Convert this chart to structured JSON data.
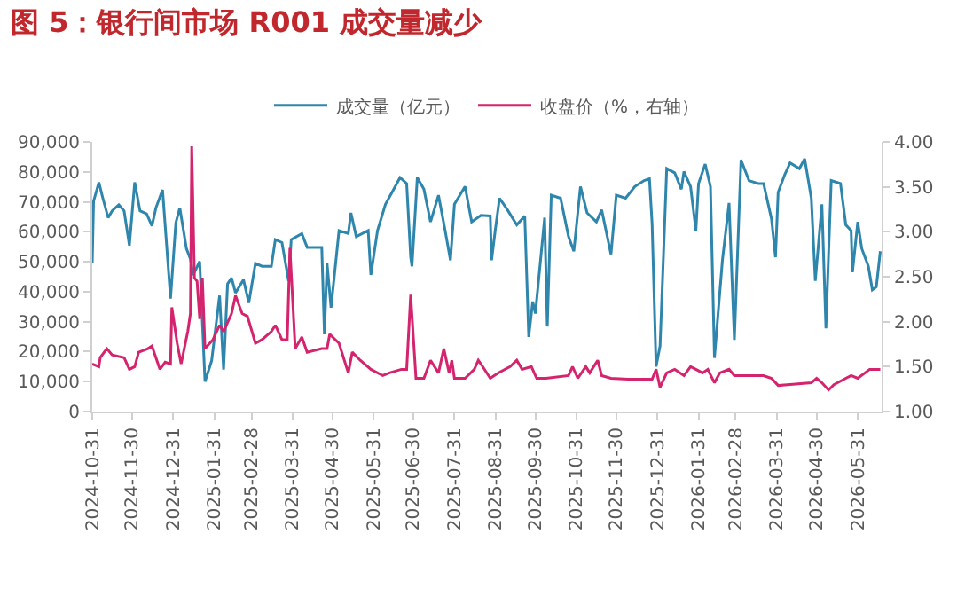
{
  "chart_data": {
    "type": "line",
    "title": "图 5：银行间市场 R001 成交量减少",
    "xlim": [
      "2024-10-31",
      "2026-06-18"
    ],
    "xticks": [
      "2024-10-31",
      "2024-11-30",
      "2024-12-31",
      "2025-01-31",
      "2025-02-28",
      "2025-03-31",
      "2025-04-30",
      "2025-05-31",
      "2025-06-30",
      "2025-07-31",
      "2025-08-31",
      "2025-09-30",
      "2025-10-31",
      "2025-11-30",
      "2025-12-31",
      "2026-01-31",
      "2026-02-28",
      "2026-03-31",
      "2026-04-30",
      "2026-05-31"
    ],
    "ylim": [
      0,
      90000
    ],
    "yticks": [
      {
        "value": 0,
        "label": "0"
      },
      {
        "value": 10000,
        "label": "10,000"
      },
      {
        "value": 20000,
        "label": "20,000"
      },
      {
        "value": 30000,
        "label": "30,000"
      },
      {
        "value": 40000,
        "label": "40,000"
      },
      {
        "value": 50000,
        "label": "50,000"
      },
      {
        "value": 60000,
        "label": "60,000"
      },
      {
        "value": 70000,
        "label": "70,000"
      },
      {
        "value": 80000,
        "label": "80,000"
      },
      {
        "value": 90000,
        "label": "90,000"
      }
    ],
    "y2lim": [
      1,
      4
    ],
    "y2ticks": [
      {
        "value": 1,
        "label": "1.00"
      },
      {
        "value": 1.5,
        "label": "1.50"
      },
      {
        "value": 2,
        "label": "2.00"
      },
      {
        "value": 2.5,
        "label": "2.50"
      },
      {
        "value": 3,
        "label": "3.00"
      },
      {
        "value": 3.5,
        "label": "3.50"
      },
      {
        "value": 4,
        "label": "4.00"
      }
    ],
    "grid": false,
    "legend": "top",
    "marker": "none",
    "line_style": "solid",
    "series": [
      {
        "name": "成交量（亿元）",
        "color": "#2f86ad",
        "x": [
          "2024-10-31",
          "2024-11-01",
          "2024-11-05",
          "2024-11-08",
          "2024-11-12",
          "2024-11-15",
          "2024-11-20",
          "2024-11-24",
          "2024-11-28",
          "2024-12-02",
          "2024-12-06",
          "2024-12-11",
          "2024-12-15",
          "2024-12-18",
          "2024-12-23",
          "2024-12-29",
          "2025-01-02",
          "2025-01-05",
          "2025-01-10",
          "2025-01-13",
          "2025-01-15",
          "2025-01-20",
          "2025-01-24",
          "2025-01-29",
          "2025-02-04",
          "2025-02-07",
          "2025-02-10",
          "2025-02-13",
          "2025-02-16",
          "2025-02-22",
          "2025-02-26",
          "2025-03-03",
          "2025-03-08",
          "2025-03-15",
          "2025-03-18",
          "2025-03-23",
          "2025-03-28",
          "2025-03-30",
          "2025-04-07",
          "2025-04-11",
          "2025-04-22",
          "2025-04-24",
          "2025-04-26",
          "2025-04-29",
          "2025-05-05",
          "2025-05-12",
          "2025-05-14",
          "2025-05-18",
          "2025-05-27",
          "2025-05-29",
          "2025-06-03",
          "2025-06-09",
          "2025-06-14",
          "2025-06-20",
          "2025-06-25",
          "2025-06-28",
          "2025-06-29",
          "2025-07-03",
          "2025-07-08",
          "2025-07-13",
          "2025-07-19",
          "2025-07-24",
          "2025-07-28",
          "2025-07-31",
          "2025-08-08",
          "2025-08-13",
          "2025-08-20",
          "2025-08-27",
          "2025-08-28",
          "2025-08-31",
          "2025-09-03",
          "2025-09-09",
          "2025-09-16",
          "2025-09-22",
          "2025-09-25",
          "2025-09-28",
          "2025-09-30",
          "2025-10-07",
          "2025-10-09",
          "2025-10-12",
          "2025-10-19",
          "2025-10-25",
          "2025-10-29",
          "2025-11-03",
          "2025-11-08",
          "2025-11-15",
          "2025-11-19",
          "2025-11-26",
          "2025-11-30",
          "2025-12-07",
          "2025-12-14",
          "2025-12-21",
          "2025-12-25",
          "2025-12-27",
          "2025-12-30",
          "2026-01-02",
          "2026-01-07",
          "2026-01-13",
          "2026-01-18",
          "2026-01-20",
          "2026-01-25",
          "2026-01-29",
          "2026-01-31",
          "2026-02-05",
          "2026-02-09",
          "2026-02-12",
          "2026-02-18",
          "2026-02-23",
          "2026-02-27",
          "2026-03-04",
          "2026-03-10",
          "2026-03-17",
          "2026-03-21",
          "2026-03-27",
          "2026-03-30",
          "2026-04-01",
          "2026-04-06",
          "2026-04-10",
          "2026-04-17",
          "2026-04-21",
          "2026-04-26",
          "2026-04-29",
          "2026-05-04",
          "2026-05-07",
          "2026-05-11",
          "2026-05-18",
          "2026-05-22",
          "2026-05-26",
          "2026-05-27",
          "2026-05-31",
          "2026-06-03",
          "2026-06-08",
          "2026-06-11",
          "2026-06-14",
          "2026-06-17"
        ],
        "values": [
          49500,
          70200,
          76500,
          71200,
          64700,
          67000,
          69000,
          67000,
          55400,
          76500,
          67000,
          66000,
          62000,
          68000,
          74000,
          37700,
          63000,
          68000,
          54400,
          50900,
          45600,
          50100,
          10000,
          17000,
          38700,
          14000,
          42600,
          44600,
          39600,
          44000,
          36300,
          49500,
          48500,
          48500,
          57400,
          56400,
          43600,
          57400,
          59400,
          54800,
          54800,
          25800,
          49500,
          34700,
          60400,
          59400,
          66300,
          58400,
          60400,
          45600,
          60400,
          69200,
          73200,
          78100,
          76100,
          51500,
          48500,
          78100,
          74200,
          63300,
          72200,
          60400,
          50500,
          69200,
          75100,
          63300,
          65500,
          65300,
          50500,
          61300,
          71200,
          67300,
          62300,
          65300,
          24900,
          36700,
          32700,
          64700,
          28400,
          72200,
          71200,
          58400,
          53500,
          75100,
          66300,
          63300,
          67300,
          52500,
          72200,
          71200,
          75100,
          77100,
          77700,
          62700,
          15000,
          21900,
          81100,
          79700,
          74200,
          80100,
          75100,
          60400,
          76100,
          82600,
          75100,
          17900,
          50500,
          69600,
          23900,
          84000,
          77100,
          76100,
          76100,
          64300,
          51500,
          73200,
          79100,
          83000,
          81100,
          84400,
          71200,
          43600,
          69200,
          27800,
          77100,
          76100,
          62300,
          60400,
          46500,
          63300,
          54400,
          48500,
          40600,
          41600,
          53500
        ]
      },
      {
        "name": "收盘价（%，右轴）",
        "color": "#d4246e",
        "axis": "y2",
        "x": [
          "2024-10-31",
          "2024-11-05",
          "2024-11-06",
          "2024-11-11",
          "2024-11-15",
          "2024-11-24",
          "2024-11-28",
          "2024-12-02",
          "2024-12-05",
          "2024-12-12",
          "2024-12-15",
          "2024-12-18",
          "2024-12-21",
          "2024-12-25",
          "2024-12-29",
          "2024-12-30",
          "2025-01-03",
          "2025-01-06",
          "2025-01-11",
          "2025-01-13",
          "2025-01-14",
          "2025-01-16",
          "2025-01-18",
          "2025-01-20",
          "2025-01-22",
          "2025-01-24",
          "2025-01-30",
          "2025-02-04",
          "2025-02-07",
          "2025-02-10",
          "2025-02-13",
          "2025-02-16",
          "2025-02-21",
          "2025-02-25",
          "2025-03-03",
          "2025-03-08",
          "2025-03-15",
          "2025-03-18",
          "2025-03-23",
          "2025-03-27",
          "2025-03-29",
          "2025-04-02",
          "2025-04-07",
          "2025-04-11",
          "2025-04-22",
          "2025-04-26",
          "2025-04-28",
          "2025-05-05",
          "2025-05-12",
          "2025-05-15",
          "2025-05-21",
          "2025-05-29",
          "2025-06-07",
          "2025-06-12",
          "2025-06-21",
          "2025-06-25",
          "2025-06-28",
          "2025-07-02",
          "2025-07-08",
          "2025-07-13",
          "2025-07-19",
          "2025-07-23",
          "2025-07-27",
          "2025-07-29",
          "2025-07-31",
          "2025-08-08",
          "2025-08-15",
          "2025-08-18",
          "2025-08-20",
          "2025-08-27",
          "2025-09-02",
          "2025-09-11",
          "2025-09-16",
          "2025-09-20",
          "2025-09-27",
          "2025-10-01",
          "2025-10-08",
          "2025-10-25",
          "2025-10-28",
          "2025-11-01",
          "2025-11-07",
          "2025-11-10",
          "2025-11-16",
          "2025-11-19",
          "2025-11-26",
          "2025-12-09",
          "2025-12-27",
          "2025-12-30",
          "2026-01-02",
          "2026-01-07",
          "2026-01-13",
          "2026-01-20",
          "2026-01-25",
          "2026-01-29",
          "2026-02-03",
          "2026-02-07",
          "2026-02-12",
          "2026-02-16",
          "2026-02-23",
          "2026-02-27",
          "2026-03-21",
          "2026-03-27",
          "2026-04-01",
          "2026-04-10",
          "2026-04-26",
          "2026-04-30",
          "2026-05-04",
          "2026-05-09",
          "2026-05-13",
          "2026-05-22",
          "2026-05-26",
          "2026-05-31",
          "2026-06-09",
          "2026-06-17"
        ],
        "values": [
          1.53,
          1.5,
          1.6,
          1.7,
          1.63,
          1.6,
          1.47,
          1.5,
          1.66,
          1.7,
          1.73,
          1.6,
          1.47,
          1.55,
          1.53,
          2.16,
          1.76,
          1.53,
          1.89,
          2.09,
          3.95,
          2.49,
          2.45,
          2.03,
          2.49,
          1.7,
          1.8,
          1.96,
          1.89,
          1.99,
          2.09,
          2.29,
          2.09,
          2.06,
          1.76,
          1.8,
          1.89,
          1.96,
          1.8,
          1.8,
          2.82,
          1.7,
          1.83,
          1.66,
          1.7,
          1.7,
          1.86,
          1.76,
          1.43,
          1.66,
          1.57,
          1.47,
          1.4,
          1.43,
          1.47,
          1.47,
          2.3,
          1.37,
          1.37,
          1.57,
          1.43,
          1.7,
          1.43,
          1.57,
          1.37,
          1.37,
          1.47,
          1.57,
          1.53,
          1.37,
          1.43,
          1.5,
          1.57,
          1.47,
          1.5,
          1.37,
          1.37,
          1.4,
          1.5,
          1.37,
          1.5,
          1.43,
          1.57,
          1.4,
          1.37,
          1.36,
          1.36,
          1.47,
          1.27,
          1.43,
          1.47,
          1.4,
          1.5,
          1.47,
          1.43,
          1.47,
          1.32,
          1.43,
          1.47,
          1.4,
          1.4,
          1.37,
          1.29,
          1.3,
          1.32,
          1.37,
          1.32,
          1.24,
          1.3,
          1.37,
          1.4,
          1.37,
          1.47,
          1.47
        ]
      }
    ]
  }
}
